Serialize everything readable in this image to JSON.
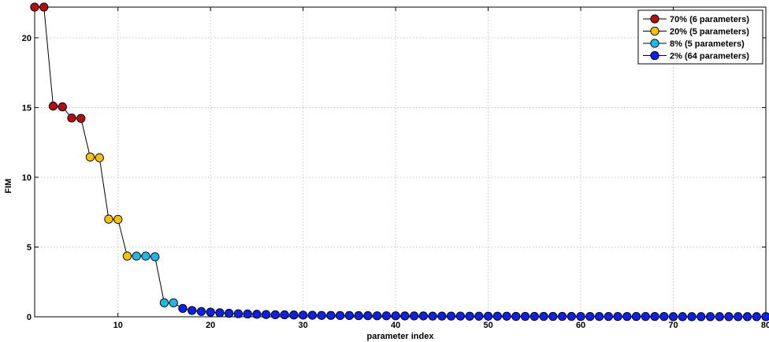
{
  "chart_data": {
    "type": "line",
    "title": "",
    "xlabel": "parameter index",
    "ylabel": "FIM",
    "xlim": [
      1,
      80
    ],
    "ylim": [
      0,
      22.2
    ],
    "xticks": [
      10,
      20,
      30,
      40,
      50,
      60,
      70,
      80
    ],
    "yticks": [
      0,
      5,
      10,
      15,
      20
    ],
    "grid": true,
    "legend_position": "top-right",
    "line_color": "#000000",
    "series": [
      {
        "name": "70% (6 parameters)",
        "color": "#b01010",
        "x": [
          1,
          2,
          3,
          4,
          5,
          6
        ],
        "y": [
          22.2,
          22.2,
          15.1,
          15.05,
          14.25,
          14.22
        ]
      },
      {
        "name": "20% (5 parameters)",
        "color": "#f2c20f",
        "x": [
          7,
          8,
          9,
          10,
          11
        ],
        "y": [
          11.45,
          11.4,
          7.0,
          6.98,
          4.35
        ]
      },
      {
        "name": "8% (5 parameters)",
        "color": "#22b8e6",
        "x": [
          12,
          13,
          14,
          15,
          16
        ],
        "y": [
          4.35,
          4.35,
          4.3,
          1.0,
          1.0
        ]
      },
      {
        "name": "2% (64 parameters)",
        "color": "#1020e0",
        "x": [
          17,
          18,
          19,
          20,
          21,
          22,
          23,
          24,
          25,
          26,
          27,
          28,
          29,
          30,
          31,
          32,
          33,
          34,
          35,
          36,
          37,
          38,
          39,
          40,
          41,
          42,
          43,
          44,
          45,
          46,
          47,
          48,
          49,
          50,
          51,
          52,
          53,
          54,
          55,
          56,
          57,
          58,
          59,
          60,
          61,
          62,
          63,
          64,
          65,
          66,
          67,
          68,
          69,
          70,
          71,
          72,
          73,
          74,
          75,
          76,
          77,
          78,
          79,
          80
        ],
        "y": [
          0.6,
          0.45,
          0.38,
          0.33,
          0.29,
          0.25,
          0.22,
          0.2,
          0.18,
          0.16,
          0.15,
          0.14,
          0.13,
          0.12,
          0.11,
          0.1,
          0.1,
          0.09,
          0.09,
          0.08,
          0.08,
          0.07,
          0.07,
          0.07,
          0.06,
          0.06,
          0.06,
          0.05,
          0.05,
          0.05,
          0.05,
          0.04,
          0.04,
          0.04,
          0.04,
          0.04,
          0.03,
          0.03,
          0.03,
          0.03,
          0.03,
          0.03,
          0.03,
          0.02,
          0.02,
          0.02,
          0.02,
          0.02,
          0.02,
          0.02,
          0.02,
          0.02,
          0.02,
          0.01,
          0.01,
          0.01,
          0.01,
          0.01,
          0.01,
          0.01,
          0.01,
          0.01,
          0.01,
          0.01
        ]
      }
    ]
  }
}
